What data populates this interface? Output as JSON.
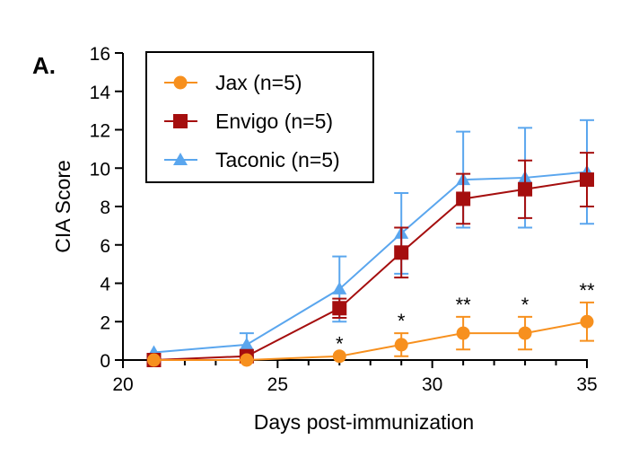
{
  "chart_data": {
    "type": "line",
    "panel_label": "A.",
    "xlabel": "Days post-immunization",
    "ylabel": "CIA Score",
    "xlim": [
      20,
      35
    ],
    "ylim": [
      0,
      16
    ],
    "xticks": [
      20,
      25,
      30,
      35
    ],
    "yticks": [
      0,
      2,
      4,
      6,
      8,
      10,
      12,
      14,
      16
    ],
    "legend_position": "top-left",
    "x": [
      21,
      24,
      27,
      29,
      31,
      33,
      35
    ],
    "series": [
      {
        "name": "Jax (n=5)",
        "color": "#F7901E",
        "marker": "circle",
        "values": [
          0,
          0,
          0.2,
          0.8,
          1.4,
          1.4,
          2.0
        ],
        "error": [
          0,
          0,
          0,
          0.6,
          0.85,
          0.85,
          1.0
        ]
      },
      {
        "name": "Envigo (n=5)",
        "color": "#A50E0E",
        "marker": "square",
        "values": [
          0,
          0.2,
          2.7,
          5.6,
          8.4,
          8.9,
          9.4
        ],
        "error": [
          0,
          0,
          0.5,
          1.3,
          1.3,
          1.5,
          1.4
        ]
      },
      {
        "name": "Taconic (n=5)",
        "color": "#5AA6EE",
        "marker": "triangle",
        "values": [
          0.4,
          0.8,
          3.7,
          6.6,
          9.4,
          9.5,
          9.8
        ],
        "error": [
          0,
          0.6,
          1.7,
          2.1,
          2.5,
          2.6,
          2.7
        ]
      }
    ],
    "annotations": [
      {
        "x": 27,
        "text": "*"
      },
      {
        "x": 29,
        "text": "*"
      },
      {
        "x": 31,
        "text": "**"
      },
      {
        "x": 33,
        "text": "*"
      },
      {
        "x": 35,
        "text": "**"
      }
    ]
  }
}
